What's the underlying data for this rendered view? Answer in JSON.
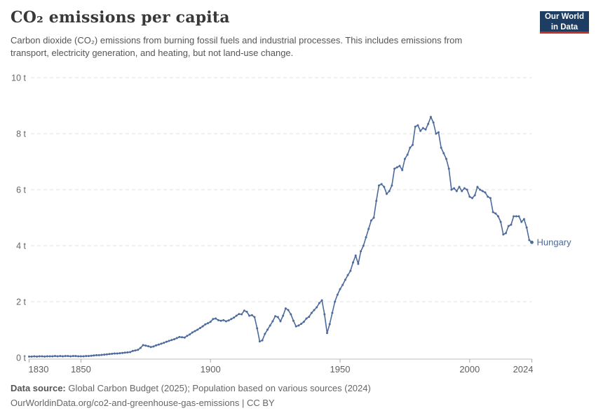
{
  "header": {
    "title": "CO₂ emissions per capita",
    "subtitle": "Carbon dioxide (CO₂) emissions from burning fossil fuels and industrial processes. This includes emissions from transport, electricity generation, and heating, but not land-use change.",
    "logo": {
      "line1": "Our World",
      "line2": "in Data",
      "bg_color": "#1d3d63",
      "accent_color": "#cb2d22"
    }
  },
  "footer": {
    "source_label": "Data source:",
    "source_text": "Global Carbon Budget (2025); Population based on various sources (2024)",
    "license_line": "OurWorldinData.org/co2-and-greenhouse-gas-emissions | CC BY"
  },
  "chart_data": {
    "type": "line",
    "title": "CO₂ emissions per capita",
    "unit": "tonnes per person",
    "xlabel": "",
    "ylabel": "",
    "x_range": [
      1830,
      2024
    ],
    "y_range": [
      0,
      10
    ],
    "x_ticks": [
      1830,
      1850,
      1900,
      1950,
      2000,
      2024
    ],
    "y_ticks": [
      0,
      2,
      4,
      6,
      8,
      10
    ],
    "y_tick_suffix": " t",
    "grid": "horizontal-dashed",
    "legend_position": "end-of-line-label",
    "line_color": "#4C6A9C",
    "series": [
      {
        "name": "Hungary",
        "year_start": 1830,
        "year_step": 1,
        "values": [
          0.04,
          0.04,
          0.05,
          0.04,
          0.05,
          0.05,
          0.04,
          0.05,
          0.05,
          0.05,
          0.06,
          0.05,
          0.06,
          0.05,
          0.06,
          0.06,
          0.05,
          0.06,
          0.06,
          0.05,
          0.05,
          0.05,
          0.06,
          0.06,
          0.07,
          0.08,
          0.09,
          0.09,
          0.1,
          0.11,
          0.12,
          0.13,
          0.14,
          0.15,
          0.15,
          0.16,
          0.17,
          0.18,
          0.19,
          0.2,
          0.24,
          0.26,
          0.28,
          0.35,
          0.45,
          0.43,
          0.41,
          0.38,
          0.4,
          0.44,
          0.47,
          0.5,
          0.53,
          0.57,
          0.6,
          0.63,
          0.66,
          0.7,
          0.74,
          0.73,
          0.72,
          0.78,
          0.83,
          0.9,
          0.95,
          1.0,
          1.06,
          1.12,
          1.19,
          1.23,
          1.28,
          1.38,
          1.4,
          1.34,
          1.32,
          1.34,
          1.3,
          1.33,
          1.38,
          1.43,
          1.5,
          1.56,
          1.55,
          1.68,
          1.64,
          1.5,
          1.52,
          1.45,
          1.05,
          0.58,
          0.62,
          0.85,
          1.0,
          1.15,
          1.3,
          1.48,
          1.45,
          1.3,
          1.5,
          1.76,
          1.7,
          1.55,
          1.32,
          1.12,
          1.15,
          1.21,
          1.28,
          1.4,
          1.46,
          1.6,
          1.7,
          1.8,
          1.95,
          2.05,
          1.55,
          0.88,
          1.2,
          1.6,
          2.0,
          2.25,
          2.45,
          2.6,
          2.78,
          2.95,
          3.1,
          3.4,
          3.65,
          3.35,
          3.8,
          4.0,
          4.3,
          4.6,
          4.9,
          5.0,
          5.6,
          6.15,
          6.2,
          6.1,
          5.85,
          5.95,
          6.15,
          6.75,
          6.8,
          6.85,
          6.7,
          7.1,
          7.25,
          7.5,
          7.6,
          8.25,
          8.3,
          8.1,
          8.2,
          8.15,
          8.35,
          8.6,
          8.4,
          8.0,
          8.05,
          7.5,
          7.3,
          7.1,
          6.75,
          6.0,
          6.05,
          5.95,
          6.1,
          5.95,
          6.05,
          6.0,
          5.75,
          5.7,
          5.8,
          6.1,
          6.0,
          5.95,
          5.9,
          5.75,
          5.7,
          5.2,
          5.15,
          5.05,
          4.85,
          4.4,
          4.45,
          4.7,
          4.75,
          5.05,
          5.05,
          5.05,
          4.85,
          4.95,
          4.65,
          4.2,
          4.12
        ]
      }
    ]
  }
}
